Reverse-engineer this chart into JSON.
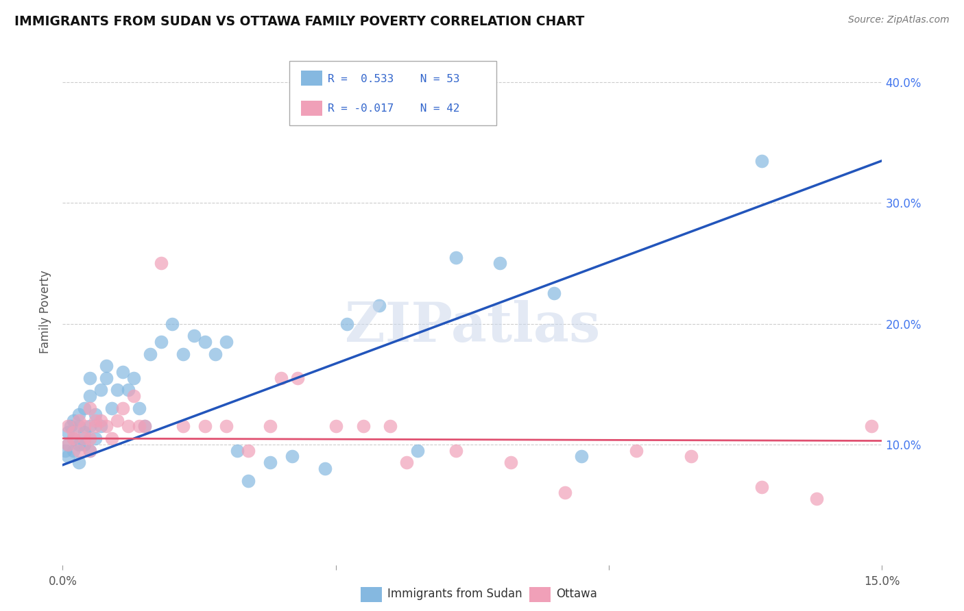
{
  "title": "IMMIGRANTS FROM SUDAN VS OTTAWA FAMILY POVERTY CORRELATION CHART",
  "source": "Source: ZipAtlas.com",
  "ylabel_left": "Family Poverty",
  "xlim": [
    0.0,
    0.15
  ],
  "ylim": [
    0.0,
    0.42
  ],
  "blue_R": "0.533",
  "blue_N": "53",
  "pink_R": "-0.017",
  "pink_N": "42",
  "legend1": "Immigrants from Sudan",
  "legend2": "Ottawa",
  "blue_color": "#85b8e0",
  "pink_color": "#f0a0b8",
  "blue_line_color": "#2255bb",
  "pink_line_color": "#e05070",
  "watermark": "ZIPatlas",
  "blue_line_x0": 0.0,
  "blue_line_y0": 0.083,
  "blue_line_x1": 0.15,
  "blue_line_y1": 0.335,
  "pink_line_x0": 0.0,
  "pink_line_y0": 0.105,
  "pink_line_x1": 0.15,
  "pink_line_y1": 0.103,
  "blue_scatter_x": [
    0.0005,
    0.001,
    0.001,
    0.001,
    0.0015,
    0.002,
    0.002,
    0.002,
    0.003,
    0.003,
    0.003,
    0.003,
    0.004,
    0.004,
    0.004,
    0.005,
    0.005,
    0.005,
    0.005,
    0.006,
    0.006,
    0.007,
    0.007,
    0.008,
    0.008,
    0.009,
    0.01,
    0.011,
    0.012,
    0.013,
    0.014,
    0.015,
    0.016,
    0.018,
    0.02,
    0.022,
    0.024,
    0.026,
    0.028,
    0.03,
    0.032,
    0.034,
    0.038,
    0.042,
    0.048,
    0.052,
    0.058,
    0.065,
    0.072,
    0.08,
    0.09,
    0.095,
    0.128
  ],
  "blue_scatter_y": [
    0.095,
    0.1,
    0.09,
    0.11,
    0.115,
    0.105,
    0.095,
    0.12,
    0.1,
    0.115,
    0.125,
    0.085,
    0.11,
    0.13,
    0.1,
    0.115,
    0.095,
    0.14,
    0.155,
    0.125,
    0.105,
    0.115,
    0.145,
    0.155,
    0.165,
    0.13,
    0.145,
    0.16,
    0.145,
    0.155,
    0.13,
    0.115,
    0.175,
    0.185,
    0.2,
    0.175,
    0.19,
    0.185,
    0.175,
    0.185,
    0.095,
    0.07,
    0.085,
    0.09,
    0.08,
    0.2,
    0.215,
    0.095,
    0.255,
    0.25,
    0.225,
    0.09,
    0.335
  ],
  "pink_scatter_x": [
    0.001,
    0.001,
    0.002,
    0.002,
    0.003,
    0.003,
    0.004,
    0.004,
    0.005,
    0.005,
    0.005,
    0.006,
    0.006,
    0.007,
    0.008,
    0.009,
    0.01,
    0.011,
    0.012,
    0.013,
    0.014,
    0.015,
    0.018,
    0.022,
    0.026,
    0.03,
    0.034,
    0.038,
    0.043,
    0.05,
    0.055,
    0.063,
    0.072,
    0.082,
    0.092,
    0.105,
    0.115,
    0.128,
    0.138,
    0.148,
    0.04,
    0.06
  ],
  "pink_scatter_y": [
    0.1,
    0.115,
    0.105,
    0.11,
    0.095,
    0.12,
    0.115,
    0.105,
    0.105,
    0.13,
    0.095,
    0.115,
    0.12,
    0.12,
    0.115,
    0.105,
    0.12,
    0.13,
    0.115,
    0.14,
    0.115,
    0.115,
    0.25,
    0.115,
    0.115,
    0.115,
    0.095,
    0.115,
    0.155,
    0.115,
    0.115,
    0.085,
    0.095,
    0.085,
    0.06,
    0.095,
    0.09,
    0.065,
    0.055,
    0.115,
    0.155,
    0.115
  ]
}
